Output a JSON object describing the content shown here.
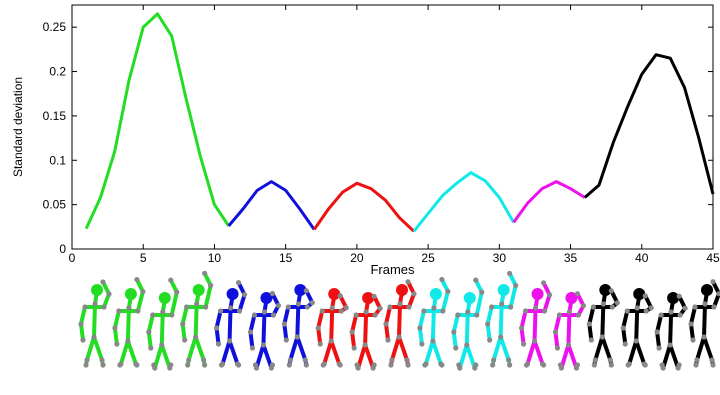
{
  "chart_data": {
    "type": "line",
    "title": "",
    "xlabel": "Frames",
    "ylabel": "Standard deviation",
    "xlim": [
      0,
      45
    ],
    "ylim": [
      0,
      0.275
    ],
    "xticks": [
      0,
      5,
      10,
      15,
      20,
      25,
      30,
      35,
      40,
      45
    ],
    "yticks": [
      0,
      0.05,
      0.1,
      0.15,
      0.2,
      0.25
    ],
    "ytick_labels": [
      "0",
      "0.05",
      "0.1",
      "0.15",
      "0.2",
      "0.25"
    ],
    "xtick_labels": [
      "0",
      "5",
      "10",
      "15",
      "20",
      "25",
      "30",
      "35",
      "40",
      "45"
    ],
    "grid": false,
    "legend": "none",
    "series": [
      {
        "color": "#22dd22",
        "x": [
          1,
          2,
          3,
          4,
          5,
          6,
          7,
          8,
          9,
          10,
          11
        ],
        "y": [
          0.023,
          0.058,
          0.11,
          0.19,
          0.25,
          0.265,
          0.24,
          0.17,
          0.105,
          0.05,
          0.026
        ]
      },
      {
        "color": "#1010dd",
        "x": [
          11,
          12,
          13,
          14,
          15,
          16,
          17
        ],
        "y": [
          0.026,
          0.045,
          0.066,
          0.076,
          0.066,
          0.045,
          0.022
        ]
      },
      {
        "color": "#ee1111",
        "x": [
          17,
          18,
          19,
          20,
          21,
          22,
          23,
          24
        ],
        "y": [
          0.022,
          0.045,
          0.064,
          0.074,
          0.068,
          0.055,
          0.035,
          0.02
        ]
      },
      {
        "color": "#11e8e8",
        "x": [
          24,
          25,
          26,
          27,
          28,
          29,
          30,
          31
        ],
        "y": [
          0.02,
          0.04,
          0.06,
          0.074,
          0.086,
          0.077,
          0.058,
          0.03
        ]
      },
      {
        "color": "#ee11ee",
        "x": [
          31,
          32,
          33,
          34,
          35,
          36
        ],
        "y": [
          0.03,
          0.052,
          0.068,
          0.076,
          0.068,
          0.058
        ]
      },
      {
        "color": "#000000",
        "x": [
          36,
          37,
          38,
          39,
          40,
          41,
          42,
          43,
          44,
          45
        ],
        "y": [
          0.058,
          0.072,
          0.12,
          0.16,
          0.197,
          0.219,
          0.215,
          0.182,
          0.125,
          0.062
        ]
      }
    ]
  },
  "figures": {
    "colors": [
      "#22dd22",
      "#22dd22",
      "#22dd22",
      "#22dd22",
      "#1010dd",
      "#1010dd",
      "#1010dd",
      "#ee1111",
      "#ee1111",
      "#ee1111",
      "#11e8e8",
      "#11e8e8",
      "#11e8e8",
      "#ee11ee",
      "#ee11ee",
      "#000000",
      "#000000",
      "#000000",
      "#000000"
    ]
  }
}
